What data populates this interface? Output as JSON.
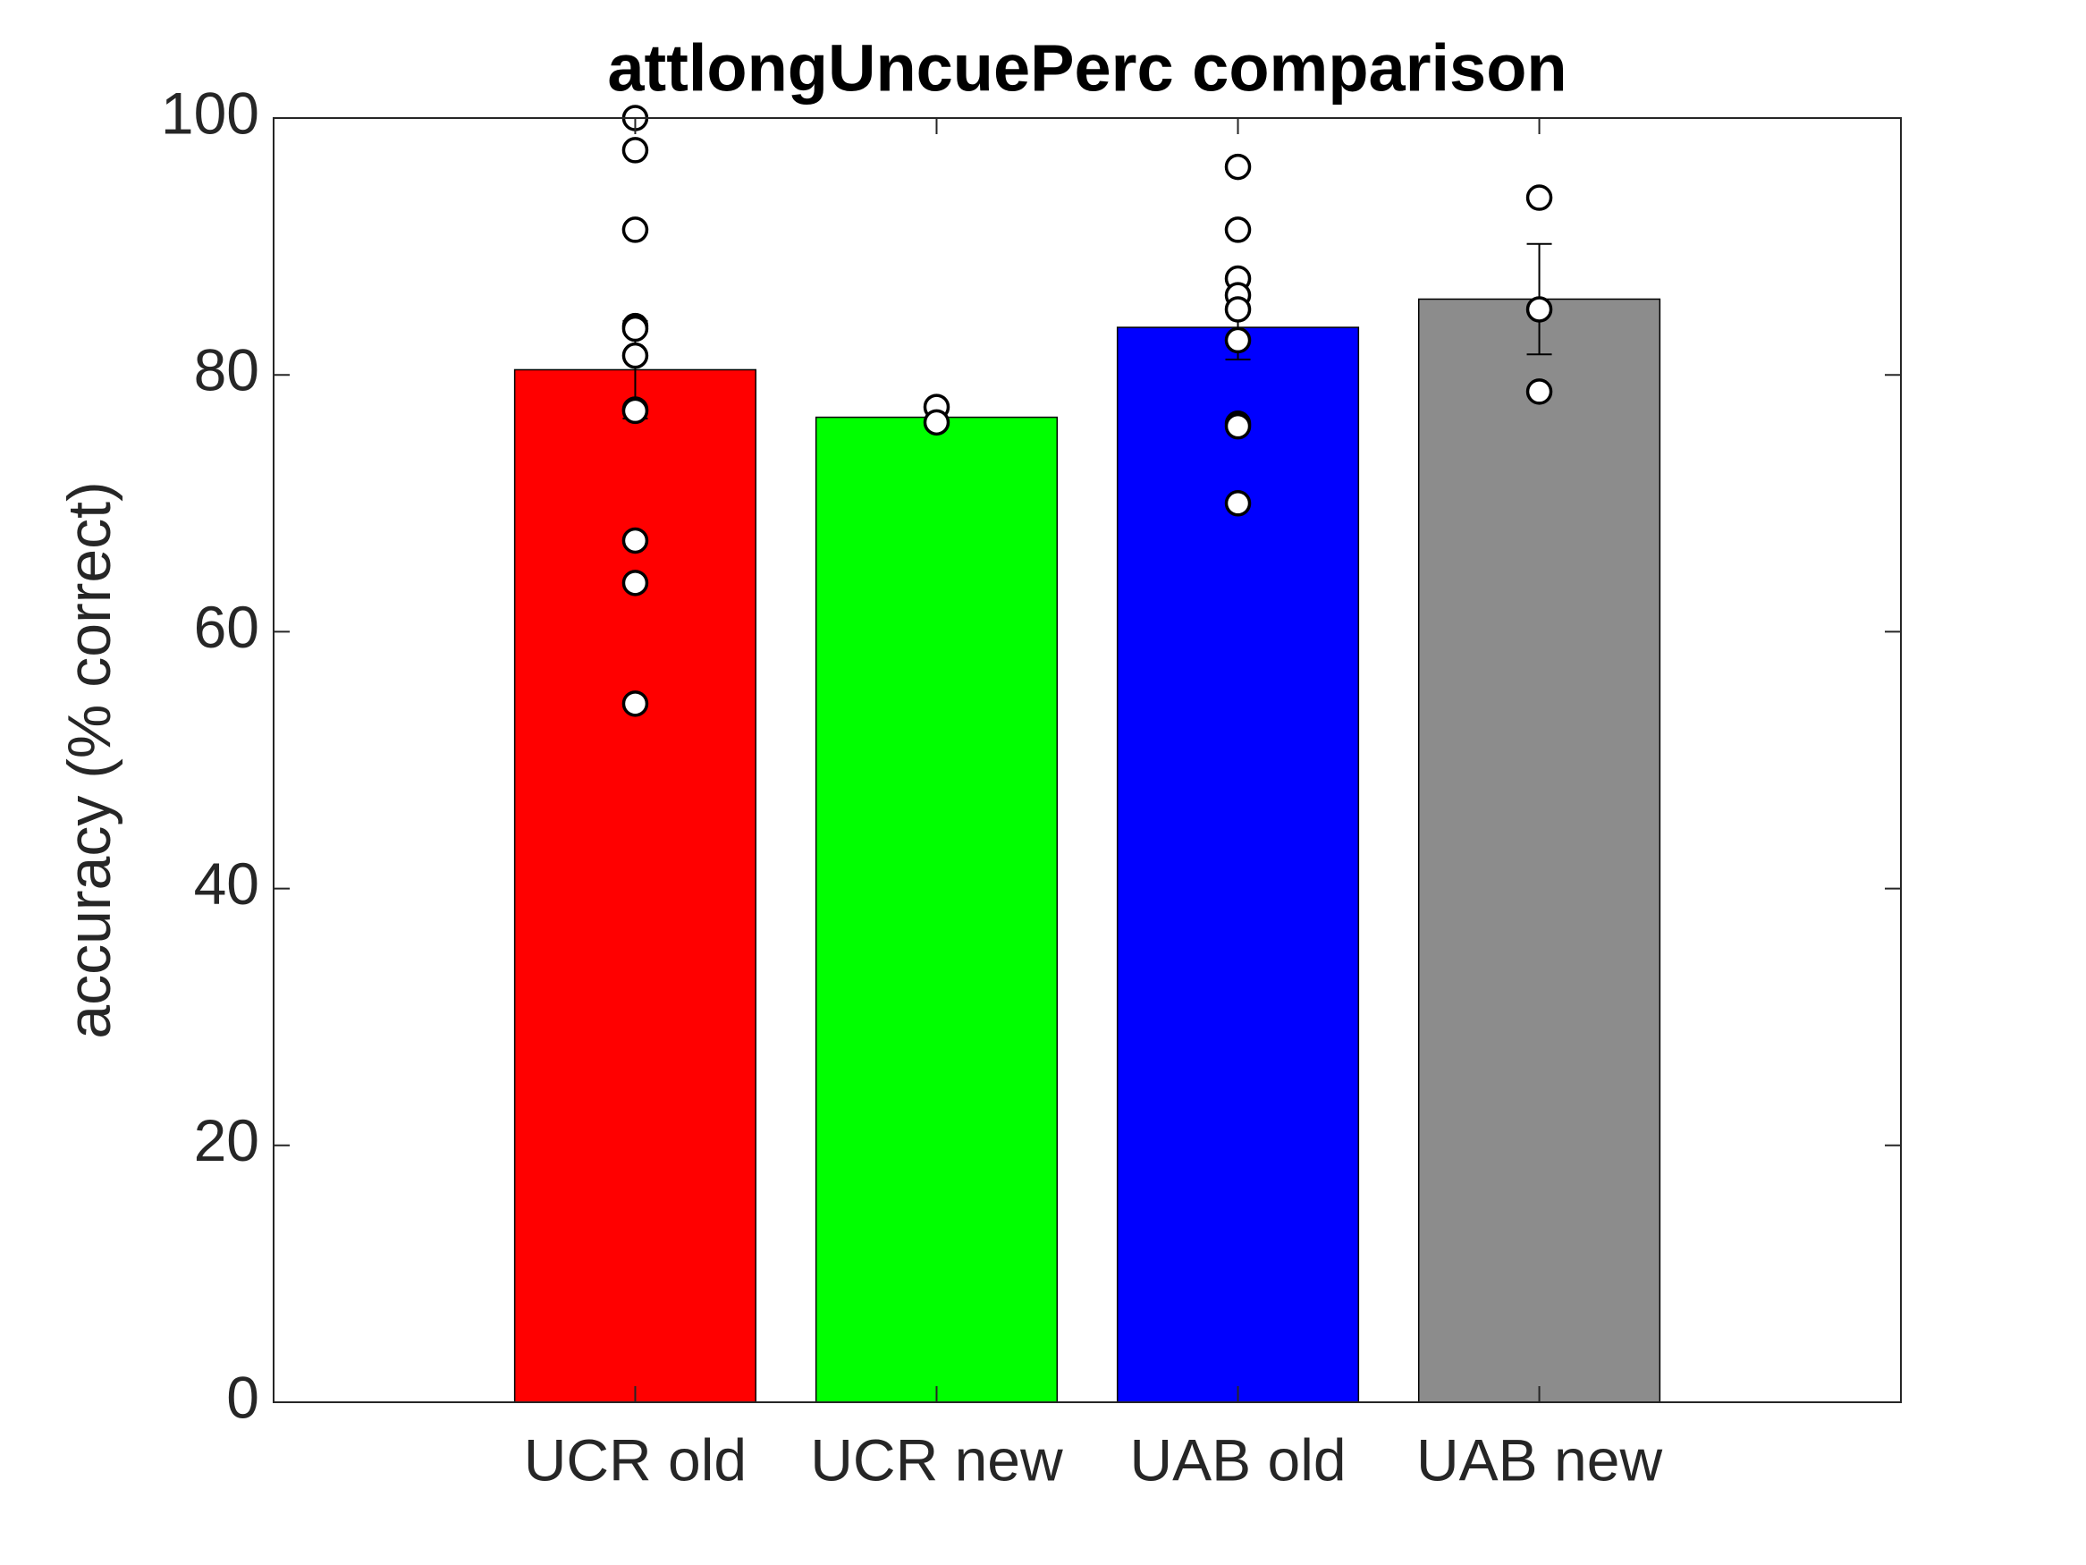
{
  "chart_data": {
    "type": "bar",
    "title": "attlongUncuePerc comparison",
    "y_label": "accuracy (% correct)",
    "categories": [
      "UCR old",
      "UCR new",
      "UAB old",
      "UAB new"
    ],
    "values": [
      80.4,
      76.7,
      83.7,
      85.9
    ],
    "errors": [
      3.8,
      0.5,
      2.5,
      4.3
    ],
    "colors": [
      "#ff0000",
      "#00ff00",
      "#0000ff",
      "#8c8c8c"
    ],
    "points": [
      [
        100,
        97.5,
        91.3,
        83.8,
        83.6,
        81.5,
        77.3,
        77.2,
        67.1,
        63.8,
        54.4
      ],
      [
        77.5,
        76.3
      ],
      [
        96.2,
        91.3,
        87.5,
        86.2,
        85.1,
        82.7,
        76.2,
        76.0,
        70.0
      ],
      [
        93.8,
        85.1,
        78.7
      ]
    ],
    "ylim": [
      0,
      100
    ],
    "yticks": [
      0,
      20,
      40,
      60,
      80,
      100
    ]
  }
}
